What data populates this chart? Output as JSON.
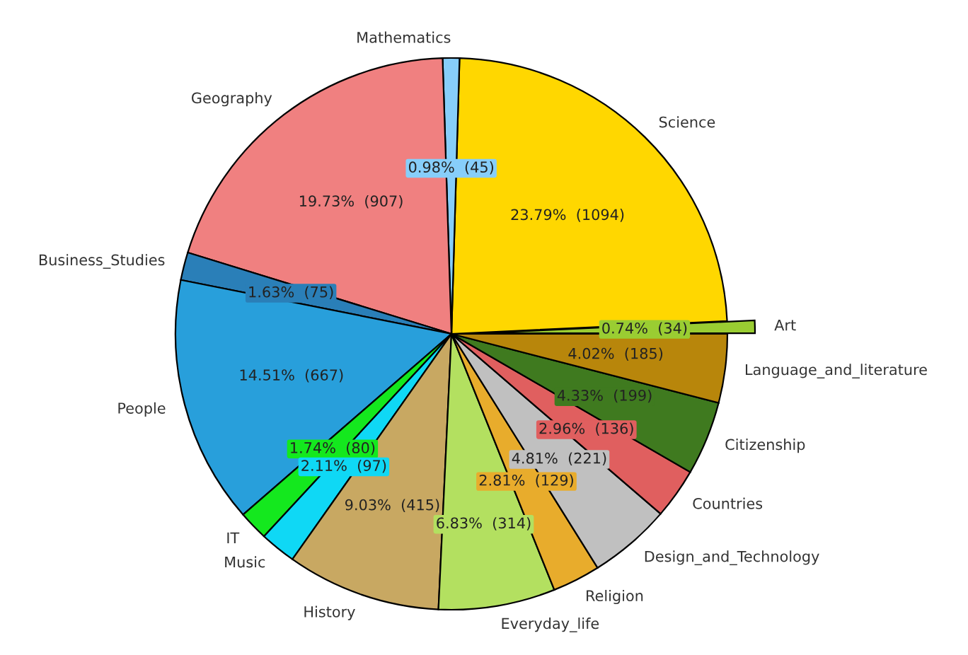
{
  "chart_data": {
    "type": "pie",
    "categories": [
      "Art",
      "Science",
      "Mathematics",
      "Geography",
      "Business_Studies",
      "People",
      "IT",
      "Music",
      "History",
      "Everyday_life",
      "Religion",
      "Design_and_Technology",
      "Countries",
      "Citizenship",
      "Language_and_literature"
    ],
    "values": [
      34,
      1094,
      45,
      907,
      75,
      667,
      80,
      97,
      415,
      314,
      129,
      221,
      136,
      199,
      185
    ],
    "colors": [
      "#9acd32",
      "#ffd700",
      "#87cefa",
      "#f08080",
      "#2a7fb8",
      "#289fdb",
      "#14e81e",
      "#0fd8f5",
      "#c8a862",
      "#b3e060",
      "#e8ac2c",
      "#c0c0c0",
      "#e05f5f",
      "#3f7a1f",
      "#b8860b"
    ],
    "value_labels": [
      "0.74%  (34)",
      "23.79%  (1094)",
      "0.98%  (45)",
      "19.73%  (907)",
      "1.63%  (75)",
      "14.51%  (667)",
      "1.74%  (80)",
      "2.11%  (97)",
      "9.03%  (415)",
      "6.83%  (314)",
      "2.81%  (129)",
      "4.81%  (221)",
      "2.96%  (136)",
      "4.33%  (199)",
      "4.02%  (185)"
    ]
  }
}
